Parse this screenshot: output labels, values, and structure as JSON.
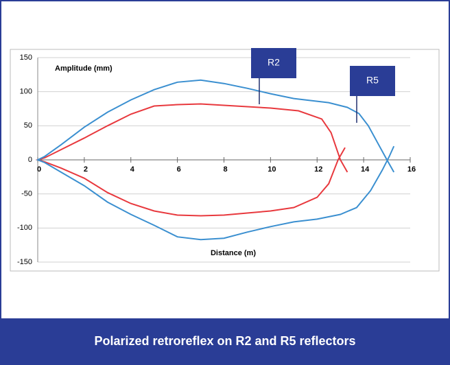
{
  "chart_data": {
    "type": "line",
    "y_label": "Amplitude (mm)",
    "x_label": "Distance (m)",
    "caption": "Polarized retroreflex on R2 and R5 reflectors",
    "xlim": [
      0,
      16
    ],
    "xticks": [
      0,
      2,
      4,
      6,
      8,
      10,
      12,
      14,
      16
    ],
    "ylim": [
      -150,
      150
    ],
    "yticks": [
      150,
      100,
      50,
      0,
      -50,
      -100,
      -150
    ],
    "grid": true,
    "series": [
      {
        "name": "R2",
        "color": "#e8383d",
        "x": [
          13.3,
          13,
          12.6,
          12.2,
          11.2,
          10,
          8,
          7,
          6,
          5,
          4,
          3,
          2,
          1,
          0.3,
          0,
          0.3,
          1,
          2,
          3,
          4,
          5,
          6,
          7,
          8,
          9,
          10,
          11,
          12,
          12.5,
          12.9,
          13.2
        ],
        "values": [
          -18,
          0,
          40,
          60,
          72,
          76,
          80,
          82,
          81,
          79,
          67,
          50,
          32,
          15,
          3,
          0,
          -3,
          -12,
          -27,
          -48,
          -64,
          -75,
          -81,
          -82,
          -81,
          -78,
          -75,
          -70,
          -55,
          -35,
          0,
          18
        ]
      },
      {
        "name": "R5",
        "color": "#3a8fd0",
        "x": [
          15.3,
          15,
          14.6,
          14.2,
          13.8,
          13.3,
          12.5,
          11,
          10,
          9,
          8,
          7,
          6,
          5,
          4,
          3,
          2,
          1,
          0.3,
          0,
          0.3,
          1,
          2,
          3,
          4,
          5,
          6,
          7,
          8,
          9,
          10,
          11,
          12,
          13,
          13.7,
          14.3,
          14.8,
          15.1,
          15.3
        ],
        "values": [
          -18,
          0,
          25,
          50,
          68,
          77,
          84,
          90,
          97,
          105,
          112,
          117,
          114,
          103,
          88,
          70,
          48,
          22,
          5,
          0,
          -4,
          -18,
          -38,
          -62,
          -80,
          -96,
          -113,
          -117,
          -115,
          -106,
          -98,
          -91,
          -87,
          -80,
          -70,
          -45,
          -15,
          5,
          20
        ]
      }
    ]
  }
}
